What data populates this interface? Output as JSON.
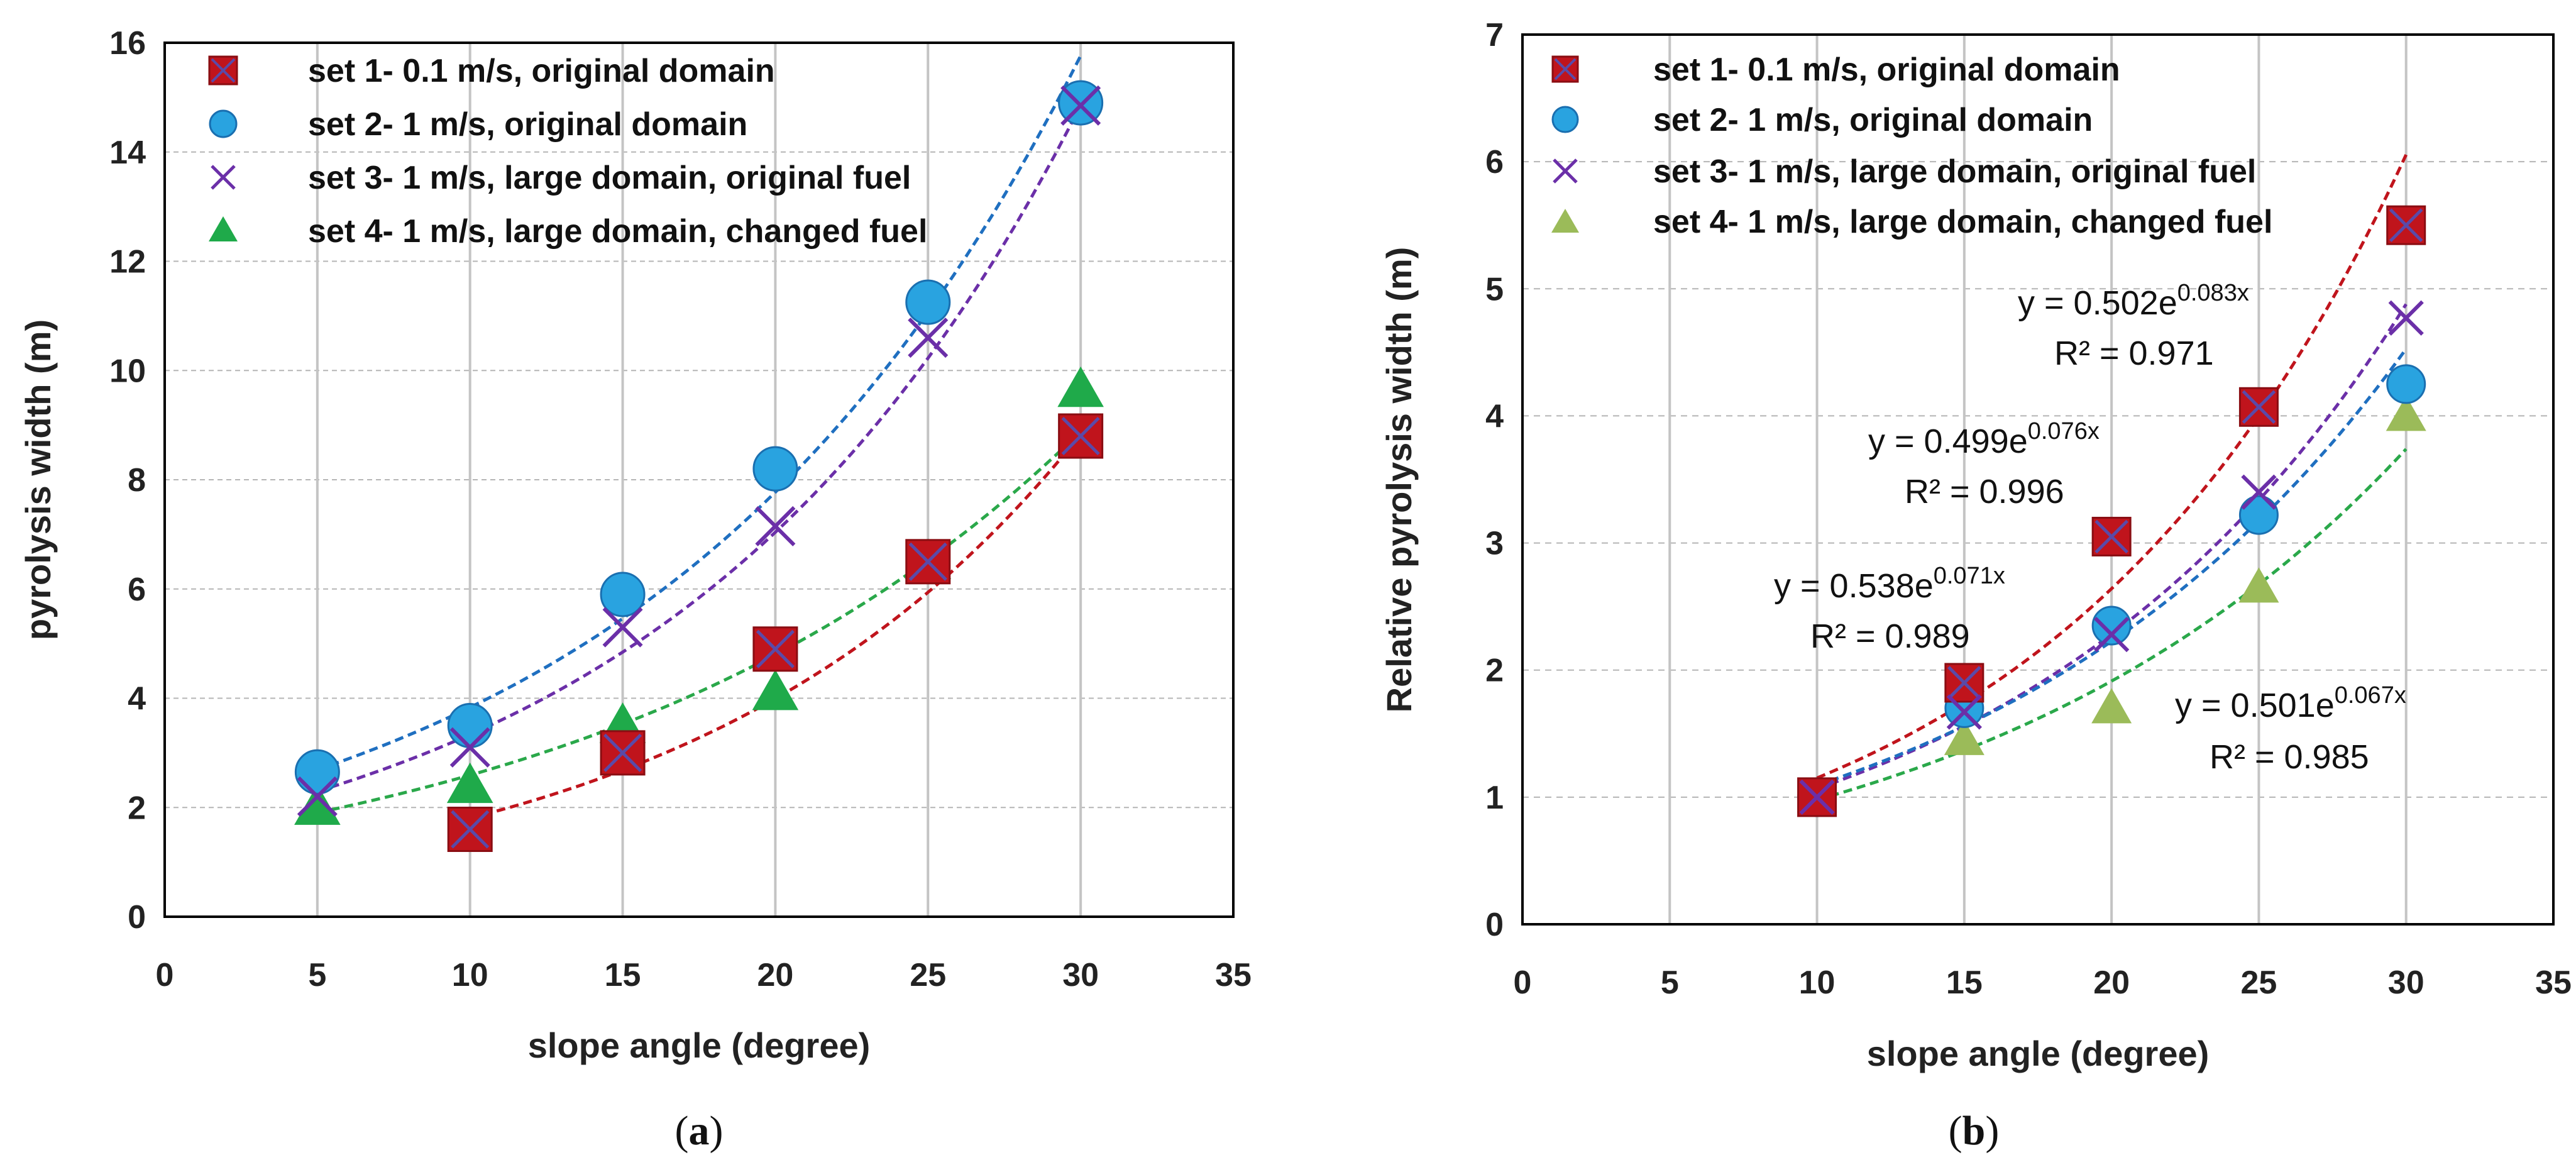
{
  "colors": {
    "set1": "#c0141c",
    "set1_cross": "#5a4aa8",
    "set2": "#29a3e0",
    "set2_edge": "#1a6fb0",
    "set3": "#6b2fa8",
    "set4a": "#1faa4a",
    "set4b": "#9bbb59",
    "fit_a_set2": "#1f6fc0",
    "fit_a_set3": "#6b2fa8",
    "fit_a_set1": "#c0141c",
    "fit_a_set4": "#2aa84a",
    "fit_b_set1": "#c0141c",
    "fit_b_set2": "#1f6fc0",
    "fit_b_set3": "#6b2fa8",
    "fit_b_set4": "#2aa84a"
  },
  "chart_data": [
    {
      "type": "scatter",
      "panel_label_pre": "(",
      "panel_label": "a",
      "panel_label_post": ")",
      "xlabel": "slope angle (degree)",
      "ylabel": "pyrolysis width (m)",
      "xlim": [
        0,
        35
      ],
      "ylim": [
        0,
        16
      ],
      "xticks": [
        0,
        5,
        10,
        15,
        20,
        25,
        30,
        35
      ],
      "yticks": [
        0,
        2,
        4,
        6,
        8,
        10,
        12,
        14,
        16
      ],
      "grid": true,
      "legend_position": "top-left",
      "series": [
        {
          "name": "set 1- 0.1 m/s, original domain",
          "marker": "square-x",
          "x": [
            10,
            15,
            20,
            25,
            30
          ],
          "y": [
            1.6,
            3.0,
            4.9,
            6.5,
            8.8
          ]
        },
        {
          "name": "set 2- 1 m/s, original domain",
          "marker": "circle",
          "x": [
            5,
            10,
            15,
            20,
            25,
            30
          ],
          "y": [
            2.65,
            3.5,
            5.9,
            8.2,
            11.25,
            14.9
          ]
        },
        {
          "name": "set 3- 1 m/s, large domain, original fuel",
          "marker": "x",
          "x": [
            5,
            10,
            15,
            20,
            25,
            30
          ],
          "y": [
            2.2,
            3.1,
            5.3,
            7.15,
            10.6,
            14.85
          ]
        },
        {
          "name": "set 4- 1 m/s, large domain, changed fuel",
          "marker": "triangle",
          "x": [
            5,
            10,
            15,
            20,
            25,
            30
          ],
          "y": [
            2.0,
            2.4,
            3.5,
            4.1,
            6.5,
            9.65
          ]
        }
      ],
      "trendlines": [
        {
          "series": "set 2",
          "a": 1.89,
          "b": 0.0707,
          "x_range": [
            5,
            30
          ]
        },
        {
          "series": "set 3",
          "a": 1.58,
          "b": 0.0747,
          "x_range": [
            5,
            30
          ]
        },
        {
          "series": "set 1",
          "a": 0.816,
          "b": 0.0794,
          "x_range": [
            10,
            30
          ]
        },
        {
          "series": "set 4",
          "a": 1.4,
          "b": 0.0616,
          "x_range": [
            5,
            30
          ]
        }
      ]
    },
    {
      "type": "scatter",
      "panel_label_pre": "(",
      "panel_label": "b",
      "panel_label_post": ")",
      "xlabel": "slope angle (degree)",
      "ylabel": "Relative pyrolysis width (m)",
      "xlim": [
        0,
        35
      ],
      "ylim": [
        0,
        7
      ],
      "xticks": [
        0,
        5,
        10,
        15,
        20,
        25,
        30,
        35
      ],
      "yticks": [
        0,
        1,
        2,
        3,
        4,
        5,
        6,
        7
      ],
      "grid": true,
      "legend_position": "top-left",
      "series": [
        {
          "name": "set 1- 0.1 m/s, original domain",
          "marker": "square-x",
          "x": [
            10,
            15,
            20,
            25,
            30
          ],
          "y": [
            1.0,
            1.9,
            3.05,
            4.07,
            5.5
          ]
        },
        {
          "name": "set 2- 1 m/s, original domain",
          "marker": "circle",
          "x": [
            10,
            15,
            20,
            25,
            30
          ],
          "y": [
            1.0,
            1.7,
            2.35,
            3.22,
            4.25
          ]
        },
        {
          "name": "set 3- 1 m/s, large domain, original fuel",
          "marker": "x",
          "x": [
            10,
            15,
            20,
            25,
            30
          ],
          "y": [
            1.0,
            1.67,
            2.28,
            3.4,
            4.77
          ]
        },
        {
          "name": "set 4- 1 m/s, large domain, changed fuel",
          "marker": "triangle",
          "x": [
            10,
            15,
            20,
            25,
            30
          ],
          "y": [
            1.0,
            1.45,
            1.7,
            2.65,
            4.0
          ]
        }
      ],
      "trendlines": [
        {
          "series": "set 1",
          "a": 0.502,
          "b": 0.083,
          "x_range": [
            10,
            30
          ]
        },
        {
          "series": "set 3",
          "a": 0.499,
          "b": 0.076,
          "x_range": [
            10,
            30
          ]
        },
        {
          "series": "set 2",
          "a": 0.538,
          "b": 0.071,
          "x_range": [
            10,
            30
          ]
        },
        {
          "series": "set 4",
          "a": 0.501,
          "b": 0.067,
          "x_range": [
            10,
            30
          ]
        }
      ],
      "annotations": [
        {
          "coef": "0.502",
          "exp": "0.083x",
          "r2": "R² = 0.971"
        },
        {
          "coef": "0.499",
          "exp": "0.076x",
          "r2": "R² = 0.996"
        },
        {
          "coef": "0.538",
          "exp": "0.071x",
          "r2": "R² = 0.989"
        },
        {
          "coef": "0.501",
          "exp": "0.067x",
          "r2": "R² = 0.985"
        }
      ]
    }
  ]
}
